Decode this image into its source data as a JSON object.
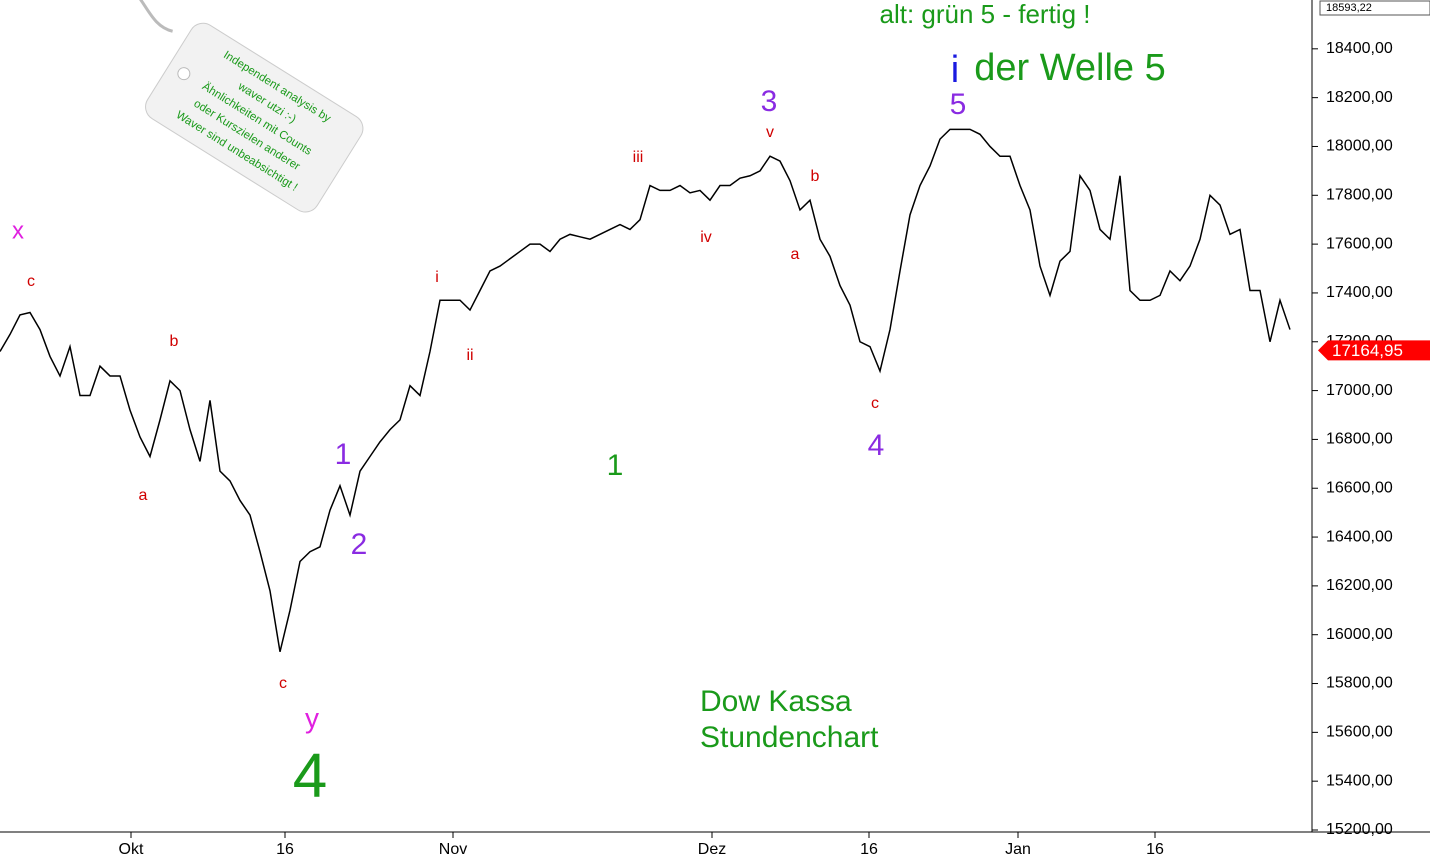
{
  "chart_data": {
    "type": "line",
    "x": [
      0,
      1,
      2,
      3,
      4,
      5,
      6,
      7,
      8,
      9,
      10,
      11,
      12,
      13,
      14,
      15,
      16,
      17,
      18,
      19,
      20,
      21,
      22,
      23,
      24,
      25,
      26,
      27,
      28,
      29,
      30,
      31,
      32,
      33,
      34,
      35,
      36,
      37,
      38,
      39,
      40,
      41,
      42,
      43,
      44,
      45,
      46,
      47,
      48,
      49,
      50,
      51,
      52,
      53,
      54,
      55,
      56,
      57,
      58,
      59,
      60,
      61,
      62,
      63,
      64,
      65,
      66,
      67,
      68,
      69,
      70,
      71,
      72,
      73,
      74,
      75,
      76,
      77,
      78,
      79,
      80,
      81,
      82,
      83,
      84,
      85,
      86,
      87,
      88,
      89,
      90,
      91,
      92,
      93,
      94,
      95,
      96,
      97,
      98,
      99,
      100,
      101,
      102,
      103,
      104,
      105,
      106,
      107,
      108,
      109,
      110,
      111,
      112,
      113,
      114,
      115,
      116,
      117,
      118,
      119,
      120,
      121,
      122,
      123,
      124,
      125,
      126,
      127,
      128,
      129
    ],
    "series": [
      {
        "color": "#000000",
        "values": [
          17160,
          17230,
          17310,
          17320,
          17250,
          17140,
          17060,
          17180,
          16980,
          16980,
          17100,
          17060,
          17060,
          16920,
          16810,
          16730,
          16880,
          17040,
          17000,
          16840,
          16710,
          16960,
          16670,
          16630,
          16550,
          16490,
          16340,
          16180,
          15930,
          16100,
          16300,
          16340,
          16360,
          16510,
          16610,
          16490,
          16670,
          16730,
          16790,
          16840,
          16880,
          17020,
          16980,
          17160,
          17370,
          17370,
          17370,
          17330,
          17410,
          17490,
          17510,
          17540,
          17570,
          17600,
          17600,
          17570,
          17620,
          17640,
          17630,
          17620,
          17640,
          17660,
          17680,
          17660,
          17700,
          17840,
          17820,
          17820,
          17840,
          17810,
          17820,
          17780,
          17840,
          17840,
          17870,
          17880,
          17900,
          17960,
          17940,
          17860,
          17740,
          17780,
          17620,
          17550,
          17430,
          17350,
          17200,
          17180,
          17080,
          17250,
          17490,
          17720,
          17840,
          17920,
          18030,
          18070,
          18070,
          18070,
          18050,
          18000,
          17960,
          17960,
          17840,
          17740,
          17510,
          17390,
          17530,
          17570,
          17880,
          17820,
          17660,
          17620,
          17880,
          17410,
          17370,
          17370,
          17390,
          17490,
          17450,
          17510,
          17620,
          17800,
          17760,
          17640,
          17660,
          17410,
          17410,
          17200,
          17370,
          17250
        ]
      }
    ],
    "xlim": [
      0,
      131
    ],
    "xticks": [
      {
        "value": 13.1,
        "label": "Okt"
      },
      {
        "value": 28.5,
        "label": "16"
      },
      {
        "value": 45.3,
        "label": "Nov"
      },
      {
        "value": 71.2,
        "label": "Dez"
      },
      {
        "value": 86.9,
        "label": "16"
      },
      {
        "value": 101.8,
        "label": "Jan"
      },
      {
        "value": 115.5,
        "label": "16"
      }
    ],
    "ylim": [
      15200,
      18600
    ],
    "yticks": [
      {
        "value": 15200,
        "label": "15200,00"
      },
      {
        "value": 15400,
        "label": "15400,00"
      },
      {
        "value": 15600,
        "label": "15600,00"
      },
      {
        "value": 15800,
        "label": "15800,00"
      },
      {
        "value": 16000,
        "label": "16000,00"
      },
      {
        "value": 16200,
        "label": "16200,00"
      },
      {
        "value": 16400,
        "label": "16400,00"
      },
      {
        "value": 16600,
        "label": "16600,00"
      },
      {
        "value": 16800,
        "label": "16800,00"
      },
      {
        "value": 17000,
        "label": "17000,00"
      },
      {
        "value": 17200,
        "label": "17200,00"
      },
      {
        "value": 17400,
        "label": "17400,00"
      },
      {
        "value": 17600,
        "label": "17600,00"
      },
      {
        "value": 17800,
        "label": "17800,00"
      },
      {
        "value": 18000,
        "label": "18000,00"
      },
      {
        "value": 18200,
        "label": "18200,00"
      },
      {
        "value": 18400,
        "label": "18400,00"
      }
    ],
    "last_price": {
      "value": 17164.95,
      "label": "17164,95",
      "color": "#ff0000"
    },
    "top_price": {
      "value": 18593.22,
      "label": "18593,22"
    },
    "annotations": [
      {
        "text": "x",
        "color": "#e020e0"
      },
      {
        "text": "c",
        "color": "#d00000"
      },
      {
        "text": "b",
        "color": "#d00000"
      },
      {
        "text": "a",
        "color": "#d00000"
      },
      {
        "text": "c",
        "color": "#d00000"
      },
      {
        "text": "y",
        "color": "#e020e0"
      },
      {
        "text": "4",
        "color": "#1a9a1a"
      },
      {
        "text": "1",
        "color": "#8a2be2"
      },
      {
        "text": "2",
        "color": "#8a2be2"
      },
      {
        "text": "i",
        "color": "#d00000"
      },
      {
        "text": "ii",
        "color": "#d00000"
      },
      {
        "text": "iii",
        "color": "#d00000"
      },
      {
        "text": "iv",
        "color": "#d00000"
      },
      {
        "text": "1",
        "color": "#1a9a1a"
      },
      {
        "text": "v",
        "color": "#d00000"
      },
      {
        "text": "3",
        "color": "#8a2be2"
      },
      {
        "text": "b",
        "color": "#d00000"
      },
      {
        "text": "a",
        "color": "#d00000"
      },
      {
        "text": "c",
        "color": "#d00000"
      },
      {
        "text": "4",
        "color": "#8a2be2"
      },
      {
        "text": "5",
        "color": "#8a2be2"
      },
      {
        "text": "i",
        "color": "#1a1ae0"
      },
      {
        "text": "der Welle 5",
        "color": "#1a9a1a"
      },
      {
        "text": "alt: grün 5 - fertig !",
        "color": "#1a9a1a"
      },
      {
        "text": "Dow Kassa",
        "color": "#1a9a1a"
      },
      {
        "text": "Stundenchart",
        "color": "#1a9a1a"
      }
    ],
    "tag_lines": [
      "Independent analysis by",
      "waver utzi :-)",
      "Ähnlichkeiten mit Counts",
      "oder Kurszielen anderer",
      "Waver sind unbeabsichtigt !"
    ]
  }
}
